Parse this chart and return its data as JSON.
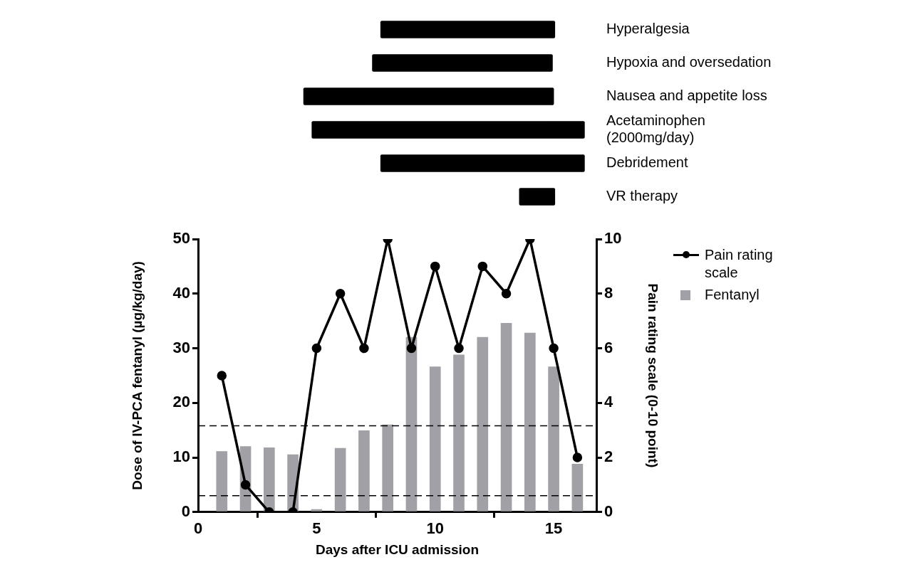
{
  "chart_data": [
    {
      "type": "bar",
      "orientation": "horizontal",
      "categories": [
        "Hyperalgesia",
        "Hypoxia and oversedation",
        "Nausea and appetite loss",
        "Acetaminophen (2000mg/day)",
        "Debridement",
        "VR therapy"
      ],
      "base": [
        7.7,
        7.35,
        4.45,
        4.8,
        7.7,
        13.55
      ],
      "values": [
        7.35,
        7.6,
        10.55,
        11.5,
        8.6,
        1.5
      ],
      "color": "#000000",
      "xticks": [
        0,
        5,
        10,
        15
      ],
      "tick_labels": "y",
      "grid": false,
      "legend": false
    },
    {
      "type": "bar",
      "x": [
        1,
        2,
        3,
        4,
        5,
        6,
        7,
        8,
        9,
        10,
        11,
        12,
        13,
        14,
        15,
        16
      ],
      "series": [
        {
          "name": "Pain rating scale",
          "type": "line",
          "axis": "y2",
          "color": "#000000",
          "values": [
            5,
            1,
            0,
            0,
            6,
            8,
            6,
            10,
            6,
            9,
            6,
            9,
            8,
            10,
            6,
            2
          ]
        },
        {
          "name": "Fentanyl",
          "color": "#a0a0a6",
          "values": [
            11.1,
            12.0,
            11.8,
            10.5,
            0.5,
            11.7,
            14.9,
            16.0,
            32.0,
            26.6,
            28.8,
            32.0,
            34.6,
            32.8,
            26.6,
            8.8
          ]
        }
      ],
      "xlabel": "Days after ICU admission",
      "ylabel": "Dose of IV-PCA fentanyl (µg/kg/day)",
      "y2label": "Pain rating scale (0-10 point)",
      "xlim": [
        0,
        16.8
      ],
      "xticks": [
        0,
        5,
        10,
        15
      ],
      "ylim": [
        0,
        50
      ],
      "yticks": [
        0,
        10,
        20,
        30,
        40,
        50
      ],
      "y2lim": [
        0,
        10
      ],
      "y2ticks": [
        0,
        2,
        4,
        6,
        8,
        10
      ],
      "ref_lines": [
        {
          "axis": "y",
          "value": 15.8,
          "line_style": "dashed"
        },
        {
          "axis": "y",
          "value": 3,
          "line_style": "dashed"
        }
      ],
      "marker": "circle",
      "line_style": "solid",
      "grid": false,
      "legend": "top right"
    }
  ]
}
